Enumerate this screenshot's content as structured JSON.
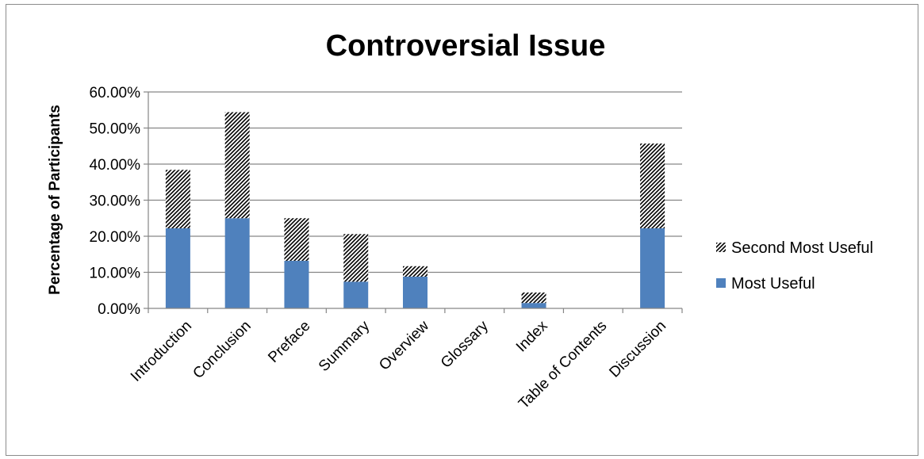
{
  "chart_data": {
    "type": "bar",
    "stacked": true,
    "title": "Controversial Issue",
    "xlabel": "",
    "ylabel": "Percentage of Participants",
    "categories": [
      "Introduction",
      "Conclusion",
      "Preface",
      "Summary",
      "Overview",
      "Glossary",
      "Index",
      "Table of Contents",
      "Discussion"
    ],
    "series": [
      {
        "name": "Most Useful",
        "values": [
          22.2,
          25.0,
          13.2,
          7.4,
          8.8,
          0.0,
          1.5,
          0.0,
          22.2
        ],
        "color": "#4f81bd",
        "pattern": "solid"
      },
      {
        "name": "Second Most Useful",
        "values": [
          16.2,
          29.4,
          11.8,
          13.2,
          2.9,
          0.0,
          2.9,
          0.0,
          23.5
        ],
        "color": "#000000",
        "pattern": "diagonal-hatch"
      }
    ],
    "ylim": [
      0,
      60
    ],
    "yticks": [
      "0.00%",
      "10.00%",
      "20.00%",
      "30.00%",
      "40.00%",
      "50.00%",
      "60.00%"
    ],
    "grid": true,
    "legend_position": "right"
  }
}
